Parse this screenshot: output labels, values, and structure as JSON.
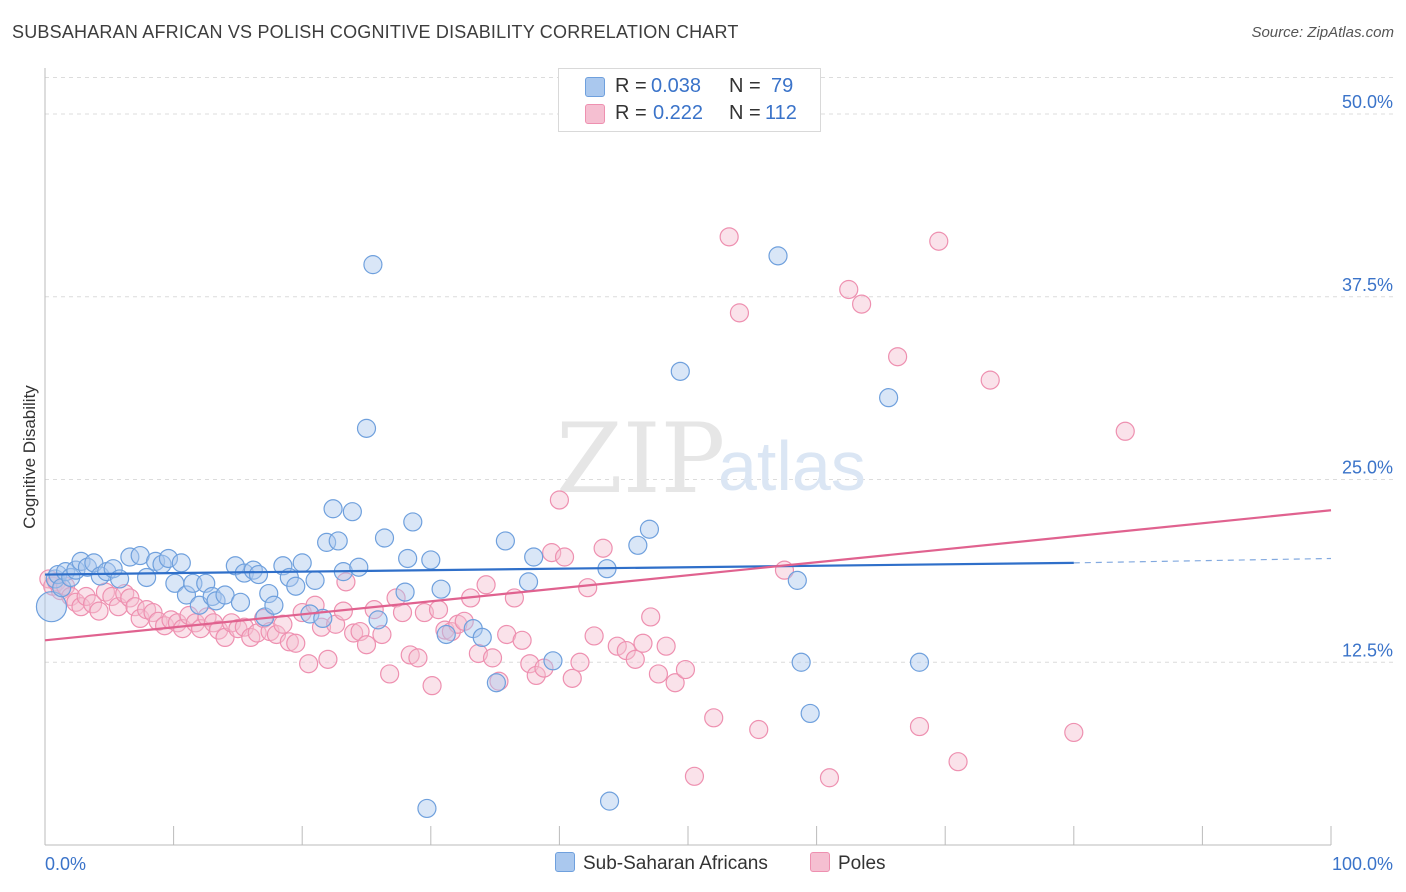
{
  "title": "SUBSAHARAN AFRICAN VS POLISH COGNITIVE DISABILITY CORRELATION CHART",
  "source": "Source: ZipAtlas.com",
  "watermark": {
    "zip": "ZIP",
    "atlas": "atlas"
  },
  "legend": {
    "rows": [
      {
        "r_label": "R =",
        "r_value": "0.038",
        "n_label": "N =",
        "n_value": "79"
      },
      {
        "r_label": "R =",
        "r_value": "0.222",
        "n_label": "N =",
        "n_value": "112"
      }
    ]
  },
  "bottom_legend": {
    "series_a": "Sub-Saharan Africans",
    "series_b": "Poles"
  },
  "colors": {
    "blue": "#6fa0dd",
    "blue_fill": "#aac8ee",
    "blue_line": "#2f6fc9",
    "pink": "#ee90b0",
    "pink_fill": "#f5bfd1",
    "pink_line": "#e0628f",
    "tick_label": "#3a73c9",
    "grid": "#dcdcdc"
  },
  "chart_data": {
    "type": "scatter",
    "title": "SUBSAHARAN AFRICAN VS POLISH COGNITIVE DISABILITY CORRELATION CHART",
    "xlabel": "",
    "ylabel": "Cognitive Disability",
    "xlim": [
      0,
      100
    ],
    "ylim": [
      0,
      52.5
    ],
    "x_tick_labels": [
      "0.0%",
      "100.0%"
    ],
    "y_ticks": [
      12.5,
      25.0,
      37.5,
      50.0
    ],
    "y_tick_labels": [
      "12.5%",
      "25.0%",
      "37.5%",
      "50.0%"
    ],
    "grid": true,
    "legend_position": "top-center",
    "series": [
      {
        "name": "Sub-Saharan Africans",
        "r": 0.038,
        "n": 79,
        "trend": {
          "x0": 0,
          "y0": 18.5,
          "x1": 80,
          "y1": 19.3,
          "dashed_to_x": 100,
          "dashed_to_y": 19.6
        },
        "points": [
          [
            0.5,
            16.3
          ],
          [
            0.8,
            18.2
          ],
          [
            1.0,
            18.5
          ],
          [
            1.3,
            17.6
          ],
          [
            1.6,
            18.7
          ],
          [
            2.0,
            18.3
          ],
          [
            2.4,
            18.8
          ],
          [
            2.8,
            19.4
          ],
          [
            3.3,
            19.0
          ],
          [
            3.8,
            19.3
          ],
          [
            4.3,
            18.4
          ],
          [
            4.8,
            18.7
          ],
          [
            5.3,
            18.9
          ],
          [
            5.8,
            18.2
          ],
          [
            6.6,
            19.7
          ],
          [
            7.4,
            19.8
          ],
          [
            7.9,
            18.3
          ],
          [
            8.6,
            19.4
          ],
          [
            9.1,
            19.2
          ],
          [
            9.6,
            19.6
          ],
          [
            10.1,
            17.9
          ],
          [
            10.6,
            19.3
          ],
          [
            11.0,
            17.1
          ],
          [
            11.5,
            17.9
          ],
          [
            12.0,
            16.4
          ],
          [
            12.5,
            17.9
          ],
          [
            13.0,
            17.0
          ],
          [
            13.3,
            16.7
          ],
          [
            14.0,
            17.1
          ],
          [
            14.8,
            19.1
          ],
          [
            15.2,
            16.6
          ],
          [
            15.5,
            18.6
          ],
          [
            16.2,
            18.8
          ],
          [
            16.6,
            18.5
          ],
          [
            17.1,
            15.6
          ],
          [
            17.4,
            17.2
          ],
          [
            17.8,
            16.4
          ],
          [
            18.5,
            19.1
          ],
          [
            19.0,
            18.3
          ],
          [
            19.5,
            17.7
          ],
          [
            20.0,
            19.3
          ],
          [
            20.6,
            15.8
          ],
          [
            21.0,
            18.1
          ],
          [
            21.6,
            15.5
          ],
          [
            21.9,
            20.7
          ],
          [
            22.4,
            23.0
          ],
          [
            22.8,
            20.8
          ],
          [
            23.2,
            18.7
          ],
          [
            23.9,
            22.8
          ],
          [
            24.4,
            19.0
          ],
          [
            25.0,
            28.5
          ],
          [
            25.5,
            39.7
          ],
          [
            25.9,
            15.4
          ],
          [
            26.4,
            21.0
          ],
          [
            28.0,
            17.3
          ],
          [
            28.2,
            19.6
          ],
          [
            28.6,
            22.1
          ],
          [
            30.0,
            19.5
          ],
          [
            30.8,
            17.5
          ],
          [
            31.2,
            14.4
          ],
          [
            33.3,
            14.8
          ],
          [
            34.0,
            14.2
          ],
          [
            35.1,
            11.1
          ],
          [
            35.8,
            20.8
          ],
          [
            37.6,
            18.0
          ],
          [
            38.0,
            19.7
          ],
          [
            39.5,
            12.6
          ],
          [
            43.9,
            3.0
          ],
          [
            43.7,
            18.9
          ],
          [
            46.1,
            20.5
          ],
          [
            47.0,
            21.6
          ],
          [
            49.4,
            32.4
          ],
          [
            57.0,
            40.3
          ],
          [
            58.5,
            18.1
          ],
          [
            58.8,
            12.5
          ],
          [
            59.5,
            9.0
          ],
          [
            65.6,
            30.6
          ],
          [
            68.0,
            12.5
          ],
          [
            29.7,
            2.5
          ]
        ]
      },
      {
        "name": "Poles",
        "r": 0.222,
        "n": 112,
        "trend": {
          "x0": 0,
          "y0": 14.0,
          "x1": 100,
          "y1": 22.9
        },
        "points": [
          [
            0.3,
            18.2
          ],
          [
            0.6,
            17.7
          ],
          [
            0.9,
            18.0
          ],
          [
            1.2,
            17.4
          ],
          [
            1.6,
            17.7
          ],
          [
            2.0,
            17.0
          ],
          [
            2.4,
            16.6
          ],
          [
            2.8,
            16.3
          ],
          [
            3.2,
            17.0
          ],
          [
            3.7,
            16.5
          ],
          [
            4.2,
            16.0
          ],
          [
            4.7,
            17.3
          ],
          [
            5.2,
            17.0
          ],
          [
            5.7,
            16.3
          ],
          [
            6.2,
            17.2
          ],
          [
            6.6,
            16.9
          ],
          [
            7.0,
            16.3
          ],
          [
            7.4,
            15.5
          ],
          [
            7.9,
            16.1
          ],
          [
            8.4,
            15.9
          ],
          [
            8.8,
            15.3
          ],
          [
            9.3,
            15.0
          ],
          [
            9.8,
            15.4
          ],
          [
            10.3,
            15.2
          ],
          [
            10.7,
            14.8
          ],
          [
            11.2,
            15.7
          ],
          [
            11.7,
            15.2
          ],
          [
            12.1,
            14.8
          ],
          [
            12.6,
            15.6
          ],
          [
            13.1,
            15.2
          ],
          [
            13.5,
            14.7
          ],
          [
            14.0,
            14.2
          ],
          [
            14.5,
            15.2
          ],
          [
            15.0,
            14.8
          ],
          [
            15.5,
            14.9
          ],
          [
            16.0,
            14.2
          ],
          [
            16.5,
            14.5
          ],
          [
            17.0,
            15.5
          ],
          [
            17.5,
            14.6
          ],
          [
            18.0,
            14.4
          ],
          [
            18.5,
            15.1
          ],
          [
            19.0,
            13.9
          ],
          [
            19.5,
            13.8
          ],
          [
            20.0,
            15.9
          ],
          [
            20.5,
            12.4
          ],
          [
            21.0,
            16.4
          ],
          [
            21.5,
            14.9
          ],
          [
            22.0,
            12.7
          ],
          [
            22.6,
            15.1
          ],
          [
            23.2,
            16.0
          ],
          [
            23.4,
            18.0
          ],
          [
            24.0,
            14.5
          ],
          [
            24.5,
            14.6
          ],
          [
            25.0,
            13.7
          ],
          [
            25.6,
            16.1
          ],
          [
            26.2,
            14.4
          ],
          [
            26.8,
            11.7
          ],
          [
            27.3,
            16.9
          ],
          [
            27.8,
            15.9
          ],
          [
            28.4,
            13.0
          ],
          [
            29.0,
            12.8
          ],
          [
            29.5,
            15.9
          ],
          [
            30.1,
            10.9
          ],
          [
            30.6,
            16.1
          ],
          [
            31.1,
            14.7
          ],
          [
            31.6,
            14.6
          ],
          [
            32.1,
            15.1
          ],
          [
            32.6,
            15.3
          ],
          [
            33.1,
            16.9
          ],
          [
            33.7,
            13.1
          ],
          [
            34.3,
            17.8
          ],
          [
            34.8,
            12.8
          ],
          [
            35.3,
            11.2
          ],
          [
            35.9,
            14.4
          ],
          [
            36.5,
            16.9
          ],
          [
            37.1,
            14.0
          ],
          [
            37.7,
            12.4
          ],
          [
            38.2,
            11.6
          ],
          [
            38.8,
            12.1
          ],
          [
            39.4,
            20.0
          ],
          [
            40.0,
            23.6
          ],
          [
            40.4,
            19.7
          ],
          [
            41.0,
            11.4
          ],
          [
            41.6,
            12.5
          ],
          [
            42.2,
            17.6
          ],
          [
            42.7,
            14.3
          ],
          [
            43.4,
            20.3
          ],
          [
            44.5,
            13.6
          ],
          [
            45.2,
            13.3
          ],
          [
            45.9,
            12.7
          ],
          [
            46.5,
            13.8
          ],
          [
            47.1,
            15.6
          ],
          [
            47.7,
            11.7
          ],
          [
            48.3,
            13.6
          ],
          [
            49.0,
            11.1
          ],
          [
            49.8,
            12.0
          ],
          [
            50.5,
            4.7
          ],
          [
            52.0,
            8.7
          ],
          [
            53.2,
            41.6
          ],
          [
            54.0,
            36.4
          ],
          [
            55.5,
            7.9
          ],
          [
            57.5,
            18.8
          ],
          [
            61.0,
            4.6
          ],
          [
            62.5,
            38.0
          ],
          [
            63.5,
            37.0
          ],
          [
            66.3,
            33.4
          ],
          [
            69.5,
            41.3
          ],
          [
            71.0,
            5.7
          ],
          [
            73.5,
            31.8
          ],
          [
            80.0,
            7.7
          ],
          [
            84.0,
            28.3
          ],
          [
            68.0,
            8.1
          ]
        ]
      }
    ]
  }
}
